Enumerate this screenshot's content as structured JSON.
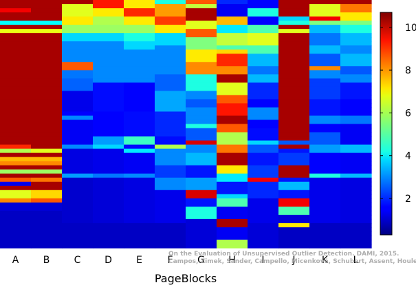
{
  "chart_data": {
    "type": "heatmap",
    "title": "",
    "xlabel": "PageBlocks",
    "ylabel": "",
    "categories": [
      "A",
      "B",
      "C",
      "D",
      "E",
      "F",
      "G",
      "H",
      "I",
      "J",
      "K",
      "L"
    ],
    "colorbar": {
      "min": 0.3,
      "max": 10.7,
      "ticks": [
        2,
        4,
        6,
        8,
        10
      ],
      "colormap": "jet"
    },
    "rows": 60,
    "columns": [
      {
        "name": "A",
        "base": 10.3,
        "stripes": [
          [
            0.03,
            0.05,
            9.5
          ],
          [
            0.09,
            0.105,
            4.2
          ],
          [
            0.12,
            0.135,
            6.6
          ],
          [
            0.21,
            0.225,
            1.1
          ],
          [
            0.58,
            0.595,
            9.0
          ],
          [
            0.6,
            0.61,
            6.0
          ],
          [
            0.63,
            0.645,
            7.5
          ],
          [
            0.65,
            0.675,
            8.0
          ],
          [
            0.685,
            0.7,
            5.8
          ],
          [
            0.72,
            0.74,
            8.5
          ],
          [
            0.74,
            0.75,
            1.4
          ],
          [
            0.76,
            0.8,
            6.5
          ],
          [
            0.8,
            0.82,
            8.0
          ],
          [
            0.82,
            0.85,
            1.2
          ],
          [
            0.85,
            1.0,
            1.0
          ]
        ]
      },
      {
        "name": "B",
        "base": 10.3,
        "stripes": [
          [
            0.09,
            0.105,
            4.2
          ],
          [
            0.12,
            0.135,
            6.6
          ],
          [
            0.21,
            0.225,
            1.2
          ],
          [
            0.6,
            0.61,
            6.5
          ],
          [
            0.63,
            0.645,
            7.5
          ],
          [
            0.65,
            0.675,
            8.0
          ],
          [
            0.685,
            0.7,
            5.8
          ],
          [
            0.72,
            0.74,
            8.2
          ],
          [
            0.76,
            0.8,
            7.2
          ],
          [
            0.8,
            0.82,
            8.5
          ],
          [
            0.82,
            0.85,
            1.2
          ],
          [
            0.85,
            1.0,
            1.0
          ]
        ]
      },
      {
        "name": "C",
        "base": 1.6,
        "stripes": [
          [
            0.0,
            0.02,
            10.3
          ],
          [
            0.02,
            0.06,
            6.5
          ],
          [
            0.06,
            0.1,
            7.0
          ],
          [
            0.1,
            0.13,
            5.8
          ],
          [
            0.13,
            0.16,
            3.8
          ],
          [
            0.16,
            0.2,
            3.0
          ],
          [
            0.2,
            0.25,
            3.0
          ],
          [
            0.25,
            0.28,
            8.5
          ],
          [
            0.28,
            0.32,
            2.8
          ],
          [
            0.32,
            0.37,
            2.6
          ],
          [
            0.37,
            0.45,
            1.4
          ],
          [
            0.47,
            0.48,
            3.0
          ],
          [
            0.48,
            0.58,
            1.5
          ],
          [
            0.58,
            0.6,
            3.0
          ],
          [
            0.6,
            0.7,
            1.3
          ],
          [
            0.7,
            0.72,
            3.2
          ],
          [
            0.72,
            0.9,
            1.1
          ],
          [
            0.9,
            1.0,
            1.0
          ]
        ]
      },
      {
        "name": "D",
        "base": 1.7,
        "stripes": [
          [
            0.0,
            0.03,
            9.2
          ],
          [
            0.03,
            0.07,
            7.0
          ],
          [
            0.07,
            0.1,
            6.0
          ],
          [
            0.1,
            0.13,
            5.8
          ],
          [
            0.13,
            0.17,
            3.8
          ],
          [
            0.17,
            0.27,
            3.0
          ],
          [
            0.27,
            0.33,
            3.0
          ],
          [
            0.33,
            0.45,
            1.7
          ],
          [
            0.45,
            0.55,
            1.6
          ],
          [
            0.55,
            0.58,
            3.2
          ],
          [
            0.58,
            0.6,
            3.8
          ],
          [
            0.6,
            0.7,
            1.4
          ],
          [
            0.7,
            0.72,
            2.8
          ],
          [
            0.72,
            0.9,
            1.2
          ],
          [
            0.9,
            1.0,
            1.0
          ]
        ]
      },
      {
        "name": "E",
        "base": 1.7,
        "stripes": [
          [
            0.0,
            0.03,
            7.0
          ],
          [
            0.03,
            0.07,
            9.0
          ],
          [
            0.07,
            0.1,
            7.0
          ],
          [
            0.1,
            0.13,
            5.8
          ],
          [
            0.13,
            0.17,
            4.5
          ],
          [
            0.17,
            0.2,
            3.8
          ],
          [
            0.2,
            0.27,
            3.0
          ],
          [
            0.27,
            0.33,
            3.0
          ],
          [
            0.33,
            0.45,
            1.6
          ],
          [
            0.55,
            0.58,
            4.8
          ],
          [
            0.6,
            0.62,
            4.0
          ],
          [
            0.62,
            0.7,
            1.5
          ],
          [
            0.7,
            0.72,
            3.0
          ],
          [
            0.72,
            0.9,
            1.3
          ],
          [
            0.9,
            1.0,
            1.0
          ]
        ]
      },
      {
        "name": "F",
        "base": 1.7,
        "stripes": [
          [
            0.0,
            0.02,
            4.5
          ],
          [
            0.02,
            0.06,
            7.8
          ],
          [
            0.06,
            0.1,
            8.8
          ],
          [
            0.1,
            0.14,
            7.0
          ],
          [
            0.14,
            0.18,
            3.8
          ],
          [
            0.18,
            0.25,
            3.0
          ],
          [
            0.25,
            0.3,
            3.0
          ],
          [
            0.3,
            0.36,
            2.6
          ],
          [
            0.36,
            0.45,
            3.3
          ],
          [
            0.45,
            0.55,
            2.0
          ],
          [
            0.58,
            0.6,
            6.0
          ],
          [
            0.6,
            0.66,
            3.0
          ],
          [
            0.66,
            0.72,
            2.2
          ],
          [
            0.72,
            0.76,
            3.0
          ],
          [
            0.76,
            0.9,
            1.4
          ],
          [
            0.9,
            1.0,
            1.0
          ]
        ]
      },
      {
        "name": "G",
        "base": 2.0,
        "stripes": [
          [
            0.0,
            0.02,
            8.5
          ],
          [
            0.02,
            0.04,
            6.2
          ],
          [
            0.04,
            0.08,
            10.3
          ],
          [
            0.08,
            0.12,
            6.5
          ],
          [
            0.12,
            0.15,
            8.5
          ],
          [
            0.15,
            0.2,
            5.5
          ],
          [
            0.2,
            0.25,
            7.0
          ],
          [
            0.25,
            0.3,
            8.0
          ],
          [
            0.3,
            0.36,
            4.5
          ],
          [
            0.36,
            0.4,
            3.0
          ],
          [
            0.4,
            0.44,
            2.5
          ],
          [
            0.44,
            0.5,
            3.0
          ],
          [
            0.5,
            0.52,
            4.5
          ],
          [
            0.52,
            0.56,
            2.5
          ],
          [
            0.56,
            0.58,
            9.8
          ],
          [
            0.58,
            0.62,
            3.0
          ],
          [
            0.62,
            0.66,
            3.5
          ],
          [
            0.66,
            0.72,
            1.8
          ],
          [
            0.72,
            0.76,
            3.2
          ],
          [
            0.76,
            0.8,
            9.8
          ],
          [
            0.8,
            0.84,
            1.8
          ],
          [
            0.84,
            0.88,
            4.5
          ],
          [
            0.88,
            1.0,
            1.2
          ]
        ]
      },
      {
        "name": "H",
        "base": 10.3,
        "stripes": [
          [
            0.0,
            0.02,
            2.0
          ],
          [
            0.02,
            0.06,
            1.5
          ],
          [
            0.06,
            0.1,
            7.5
          ],
          [
            0.1,
            0.14,
            4.0
          ],
          [
            0.14,
            0.18,
            6.2
          ],
          [
            0.18,
            0.2,
            5.0
          ],
          [
            0.2,
            0.22,
            7.2
          ],
          [
            0.22,
            0.26,
            9.0
          ],
          [
            0.26,
            0.3,
            8.0
          ],
          [
            0.3,
            0.34,
            10.3
          ],
          [
            0.34,
            0.38,
            6.5
          ],
          [
            0.38,
            0.42,
            8.5
          ],
          [
            0.42,
            0.46,
            9.2
          ],
          [
            0.46,
            0.5,
            10.3
          ],
          [
            0.5,
            0.54,
            8.5
          ],
          [
            0.54,
            0.58,
            6.0
          ],
          [
            0.58,
            0.62,
            8.2
          ],
          [
            0.62,
            0.66,
            10.3
          ],
          [
            0.66,
            0.7,
            7.0
          ],
          [
            0.7,
            0.74,
            4.0
          ],
          [
            0.74,
            0.78,
            1.8
          ],
          [
            0.78,
            0.8,
            3.8
          ],
          [
            0.8,
            0.84,
            5.0
          ],
          [
            0.84,
            0.88,
            1.5
          ],
          [
            0.88,
            0.92,
            10.3
          ],
          [
            0.92,
            0.96,
            1.5
          ],
          [
            0.96,
            1.0,
            6.0
          ]
        ]
      },
      {
        "name": "I",
        "base": 1.7,
        "stripes": [
          [
            0.0,
            0.03,
            1.6
          ],
          [
            0.03,
            0.07,
            4.5
          ],
          [
            0.07,
            0.1,
            1.6
          ],
          [
            0.1,
            0.14,
            5.0
          ],
          [
            0.14,
            0.18,
            6.5
          ],
          [
            0.18,
            0.22,
            5.0
          ],
          [
            0.22,
            0.26,
            3.5
          ],
          [
            0.26,
            0.3,
            2.8
          ],
          [
            0.3,
            0.34,
            3.5
          ],
          [
            0.34,
            0.4,
            2.0
          ],
          [
            0.4,
            0.44,
            1.6
          ],
          [
            0.44,
            0.48,
            3.0
          ],
          [
            0.48,
            0.52,
            1.6
          ],
          [
            0.56,
            0.58,
            3.8
          ],
          [
            0.58,
            0.62,
            2.5
          ],
          [
            0.62,
            0.66,
            1.8
          ],
          [
            0.66,
            0.72,
            2.2
          ],
          [
            0.72,
            0.74,
            9.5
          ],
          [
            0.74,
            0.8,
            2.0
          ],
          [
            0.8,
            0.9,
            1.4
          ],
          [
            0.9,
            1.0,
            1.2
          ]
        ]
      },
      {
        "name": "J",
        "base": 10.3,
        "stripes": [
          [
            0.06,
            0.08,
            3.8
          ],
          [
            0.09,
            0.105,
            4.5
          ],
          [
            0.12,
            0.135,
            6.5
          ],
          [
            0.21,
            0.225,
            1.3
          ],
          [
            0.56,
            0.59,
            2.5
          ],
          [
            0.6,
            0.62,
            1.8
          ],
          [
            0.62,
            0.66,
            2.2
          ],
          [
            0.72,
            0.74,
            1.8
          ],
          [
            0.74,
            0.76,
            3.5
          ],
          [
            0.76,
            0.8,
            1.8
          ],
          [
            0.8,
            0.84,
            9.5
          ],
          [
            0.84,
            0.86,
            5.0
          ],
          [
            0.86,
            0.9,
            1.2
          ],
          [
            0.9,
            0.92,
            7.0
          ],
          [
            0.92,
            1.0,
            1.0
          ]
        ]
      },
      {
        "name": "K",
        "base": 1.7,
        "stripes": [
          [
            0.0,
            0.02,
            10.3
          ],
          [
            0.02,
            0.06,
            6.5
          ],
          [
            0.06,
            0.08,
            9.5
          ],
          [
            0.08,
            0.1,
            5.5
          ],
          [
            0.1,
            0.14,
            3.5
          ],
          [
            0.14,
            0.18,
            2.8
          ],
          [
            0.18,
            0.22,
            3.5
          ],
          [
            0.22,
            0.26,
            2.5
          ],
          [
            0.26,
            0.28,
            8.0
          ],
          [
            0.28,
            0.32,
            3.0
          ],
          [
            0.32,
            0.4,
            2.2
          ],
          [
            0.4,
            0.46,
            1.8
          ],
          [
            0.46,
            0.5,
            3.0
          ],
          [
            0.5,
            0.54,
            1.6
          ],
          [
            0.54,
            0.58,
            2.5
          ],
          [
            0.58,
            0.62,
            3.2
          ],
          [
            0.62,
            0.7,
            1.6
          ],
          [
            0.7,
            0.72,
            4.5
          ],
          [
            0.72,
            0.9,
            1.4
          ],
          [
            0.9,
            1.0,
            1.0
          ]
        ]
      },
      {
        "name": "L",
        "base": 1.7,
        "stripes": [
          [
            0.0,
            0.02,
            10.3
          ],
          [
            0.02,
            0.05,
            8.2
          ],
          [
            0.05,
            0.08,
            7.0
          ],
          [
            0.08,
            0.1,
            5.5
          ],
          [
            0.1,
            0.14,
            4.5
          ],
          [
            0.14,
            0.18,
            3.5
          ],
          [
            0.18,
            0.22,
            3.0
          ],
          [
            0.22,
            0.26,
            3.5
          ],
          [
            0.26,
            0.3,
            2.5
          ],
          [
            0.3,
            0.34,
            3.0
          ],
          [
            0.34,
            0.4,
            1.8
          ],
          [
            0.4,
            0.46,
            1.6
          ],
          [
            0.46,
            0.5,
            2.8
          ],
          [
            0.5,
            0.58,
            1.5
          ],
          [
            0.58,
            0.62,
            3.5
          ],
          [
            0.62,
            0.7,
            1.5
          ],
          [
            0.7,
            0.72,
            3.5
          ],
          [
            0.72,
            0.9,
            1.3
          ],
          [
            0.9,
            1.0,
            1.0
          ]
        ]
      }
    ]
  },
  "watermark": {
    "line1": "On the Evaluation of Unsupervised Outlier Detection. DAMI, 2015.",
    "line2": "Campos, Zimek, Sander, Campello, Micenková, Schubert, Assent, Houle"
  }
}
